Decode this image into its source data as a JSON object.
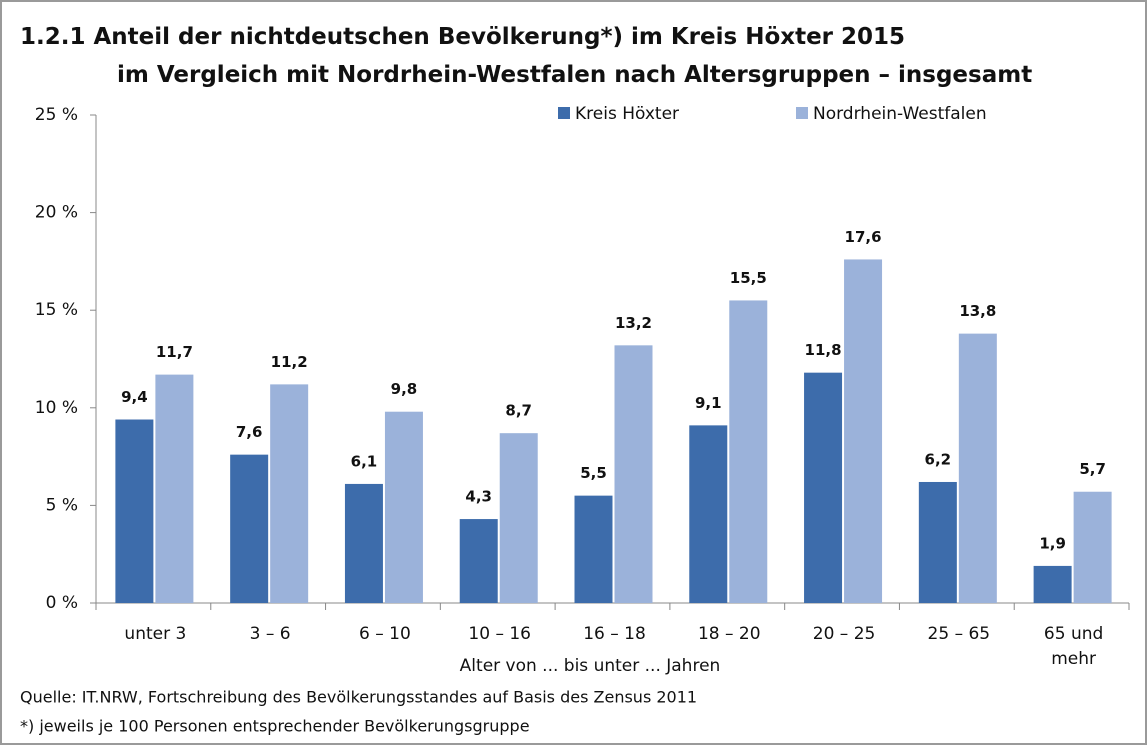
{
  "chart_data": {
    "type": "bar",
    "title": "1.2.1  Anteil der nichtdeutschen Bevölkerung*)  im Kreis Höxter 2015",
    "subtitle": "im Vergleich mit Nordrhein-Westfalen  nach Altersgruppen – insgesamt",
    "x_label": "Alter von ... bis unter ... Jahren",
    "source": "Quelle: IT.NRW, Fortschreibung des Bevölkerungsstandes auf Basis des Zensus 2011",
    "footnote": "*) jeweils je 100 Personen entsprechender Bevölkerungsgruppe",
    "categories": [
      "unter 3",
      "3 –  6",
      "6 – 10",
      "10 – 16",
      "16 – 18",
      "18 – 20",
      "20 – 25",
      "25 – 65",
      "65 und mehr"
    ],
    "series": [
      {
        "name": "Kreis Höxter",
        "color": "#3d6cab",
        "values": [
          9.4,
          7.6,
          6.1,
          4.3,
          5.5,
          9.1,
          11.8,
          6.2,
          1.9
        ],
        "value_labels": [
          "9,4",
          "7,6",
          "6,1",
          "4,3",
          "5,5",
          "9,1",
          "11,8",
          "6,2",
          "1,9"
        ]
      },
      {
        "name": "Nordrhein-Westfalen",
        "color": "#9bb2da",
        "values": [
          11.7,
          11.2,
          9.8,
          8.7,
          13.2,
          15.5,
          17.6,
          13.8,
          5.7
        ],
        "value_labels": [
          "11,7",
          "11,2",
          "9,8",
          "8,7",
          "13,2",
          "15,5",
          "17,6",
          "13,8",
          "5,7"
        ]
      }
    ],
    "ylim": [
      0,
      25
    ],
    "yticks": [
      {
        "value": 0,
        "label": "0 %"
      },
      {
        "value": 5,
        "label": "5 %"
      },
      {
        "value": 10,
        "label": "10 %"
      },
      {
        "value": 15,
        "label": "15 %"
      },
      {
        "value": 20,
        "label": "20 %"
      },
      {
        "value": 25,
        "label": "25 %"
      }
    ],
    "legend": "top-right",
    "grid": false
  }
}
